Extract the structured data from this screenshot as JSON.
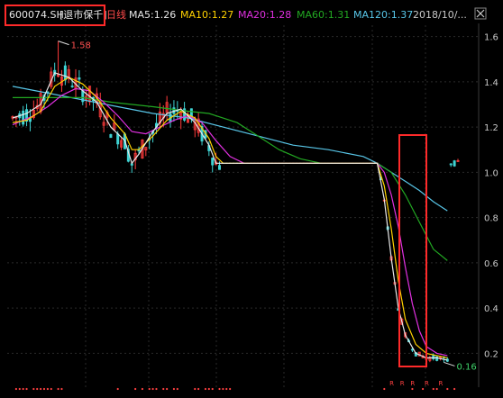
{
  "header": {
    "symbol": "600074.SH",
    "name_tag": "[退市保千]",
    "period": "日线",
    "ma5": "MA5:1.26",
    "ma10": "MA10:1.27",
    "ma20": "MA20:1.28",
    "ma60": "MA60:1.31",
    "ma120": "MA120:1.37",
    "date": "2018/10/...",
    "close_icon": "close-icon"
  },
  "colors": {
    "background": "#000000",
    "up": "#ff3b3b",
    "down": "#3fd3d3",
    "flat": "#e8e8e8",
    "ma5": "#e8e8e8",
    "ma10": "#ffd200",
    "ma20": "#e030e0",
    "ma60": "#22a822",
    "ma120": "#58c6e8",
    "highlight": "#ff2a2a",
    "grid": "#2a2a2a",
    "axis_text": "#c8c8c8",
    "marker": "#ff4040"
  },
  "chart_data": {
    "type": "candlestick",
    "y_axis_ticks": [
      "1.6",
      "1.4",
      "1.2",
      "1.0",
      "0.8",
      "0.6",
      "0.4",
      "0.2"
    ],
    "ylim": [
      0.13,
      1.65
    ],
    "num_bars": 128,
    "annotations": [
      {
        "label": "1.58",
        "bar": 13,
        "value": 1.58
      },
      {
        "label": "0.16",
        "bar": 123,
        "value": 0.16
      }
    ],
    "ma_lines": {
      "MA5": [
        [
          0,
          1.24
        ],
        [
          4,
          1.26
        ],
        [
          8,
          1.3
        ],
        [
          12,
          1.44
        ],
        [
          16,
          1.42
        ],
        [
          20,
          1.36
        ],
        [
          24,
          1.31
        ],
        [
          28,
          1.2
        ],
        [
          32,
          1.14
        ],
        [
          34,
          1.04
        ],
        [
          36,
          1.08
        ],
        [
          40,
          1.18
        ],
        [
          44,
          1.26
        ],
        [
          48,
          1.28
        ],
        [
          52,
          1.22
        ],
        [
          56,
          1.12
        ],
        [
          58,
          1.04
        ],
        [
          60,
          1.04
        ],
        [
          75,
          1.04
        ],
        [
          100,
          1.04
        ],
        [
          104,
          1.04
        ],
        [
          106,
          0.88
        ],
        [
          108,
          0.62
        ],
        [
          110,
          0.4
        ],
        [
          112,
          0.28
        ],
        [
          115,
          0.2
        ],
        [
          118,
          0.18
        ],
        [
          121,
          0.18
        ],
        [
          124,
          0.17
        ]
      ],
      "MA10": [
        [
          0,
          1.22
        ],
        [
          4,
          1.23
        ],
        [
          8,
          1.27
        ],
        [
          12,
          1.38
        ],
        [
          16,
          1.42
        ],
        [
          20,
          1.39
        ],
        [
          24,
          1.33
        ],
        [
          28,
          1.24
        ],
        [
          32,
          1.17
        ],
        [
          34,
          1.1
        ],
        [
          36,
          1.1
        ],
        [
          40,
          1.16
        ],
        [
          44,
          1.23
        ],
        [
          48,
          1.27
        ],
        [
          52,
          1.24
        ],
        [
          56,
          1.15
        ],
        [
          58,
          1.07
        ],
        [
          60,
          1.04
        ],
        [
          75,
          1.04
        ],
        [
          100,
          1.04
        ],
        [
          104,
          1.04
        ],
        [
          106,
          0.94
        ],
        [
          108,
          0.75
        ],
        [
          110,
          0.52
        ],
        [
          112,
          0.35
        ],
        [
          115,
          0.24
        ],
        [
          118,
          0.2
        ],
        [
          121,
          0.19
        ],
        [
          124,
          0.18
        ]
      ],
      "MA20": [
        [
          0,
          1.21
        ],
        [
          6,
          1.25
        ],
        [
          10,
          1.29
        ],
        [
          14,
          1.34
        ],
        [
          18,
          1.37
        ],
        [
          22,
          1.36
        ],
        [
          26,
          1.31
        ],
        [
          30,
          1.25
        ],
        [
          34,
          1.18
        ],
        [
          38,
          1.17
        ],
        [
          42,
          1.2
        ],
        [
          46,
          1.23
        ],
        [
          50,
          1.25
        ],
        [
          54,
          1.22
        ],
        [
          58,
          1.14
        ],
        [
          62,
          1.07
        ],
        [
          66,
          1.04
        ],
        [
          70,
          1.04
        ],
        [
          100,
          1.04
        ],
        [
          104,
          1.04
        ],
        [
          106,
          1.0
        ],
        [
          108,
          0.9
        ],
        [
          110,
          0.76
        ],
        [
          112,
          0.58
        ],
        [
          114,
          0.42
        ],
        [
          116,
          0.3
        ],
        [
          118,
          0.23
        ],
        [
          121,
          0.2
        ],
        [
          124,
          0.19
        ]
      ],
      "MA60": [
        [
          0,
          1.33
        ],
        [
          10,
          1.33
        ],
        [
          20,
          1.33
        ],
        [
          28,
          1.31
        ],
        [
          40,
          1.29
        ],
        [
          50,
          1.27
        ],
        [
          56,
          1.26
        ],
        [
          64,
          1.22
        ],
        [
          70,
          1.16
        ],
        [
          76,
          1.1
        ],
        [
          82,
          1.06
        ],
        [
          88,
          1.04
        ],
        [
          100,
          1.04
        ],
        [
          104,
          1.04
        ],
        [
          108,
          1.0
        ],
        [
          112,
          0.9
        ],
        [
          116,
          0.78
        ],
        [
          120,
          0.66
        ],
        [
          124,
          0.61
        ]
      ],
      "MA120": [
        [
          0,
          1.38
        ],
        [
          10,
          1.35
        ],
        [
          20,
          1.32
        ],
        [
          30,
          1.29
        ],
        [
          40,
          1.26
        ],
        [
          50,
          1.24
        ],
        [
          60,
          1.2
        ],
        [
          70,
          1.16
        ],
        [
          80,
          1.12
        ],
        [
          90,
          1.1
        ],
        [
          100,
          1.07
        ],
        [
          104,
          1.04
        ],
        [
          108,
          1.0
        ],
        [
          112,
          0.96
        ],
        [
          116,
          0.92
        ],
        [
          120,
          0.87
        ],
        [
          124,
          0.83
        ]
      ]
    }
  }
}
